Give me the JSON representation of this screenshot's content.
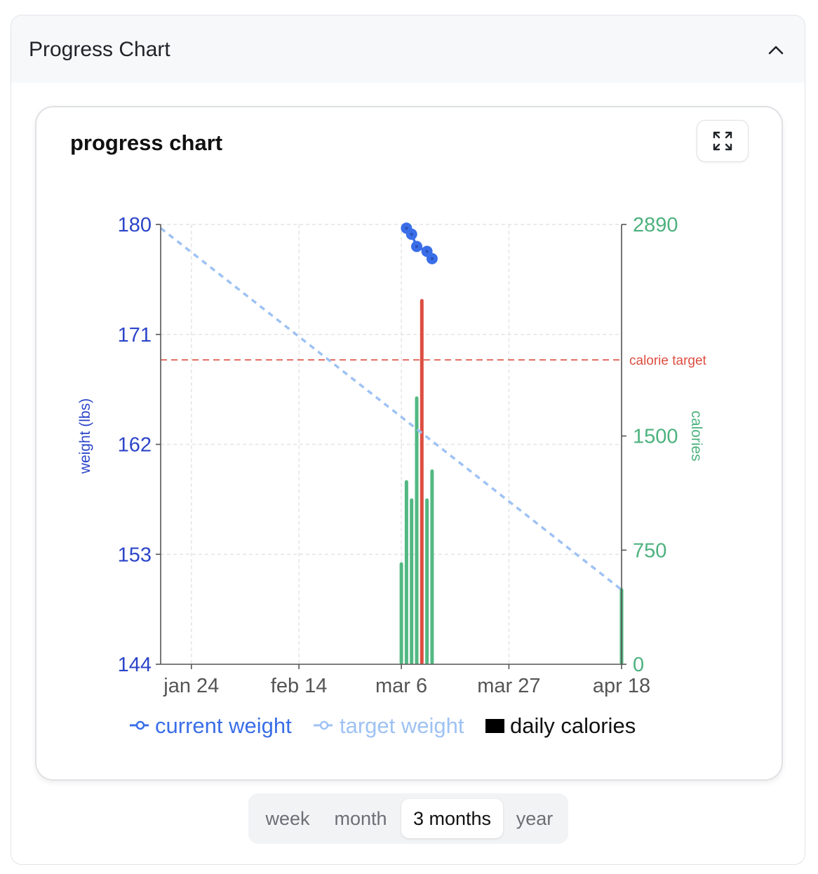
{
  "panel": {
    "title": "Progress Chart",
    "collapse_icon": "chevron-up-icon"
  },
  "card": {
    "title": "progress chart",
    "expand_icon": "expand-icon"
  },
  "range_tabs": [
    "week",
    "month",
    "3 months",
    "year"
  ],
  "range_selected": "3 months",
  "colors": {
    "weight_axis": "#2c45c9",
    "calorie_axis": "#4db27e",
    "current_weight": "#3a6ee8",
    "target_weight": "#9ec2f3",
    "calorie_bar": "#53b883",
    "over_target_bar": "#dc4e41",
    "calorie_target_line": "#dc4e41"
  },
  "chart_data": {
    "type": "line",
    "title": "",
    "ylabel": "weight (lbs)",
    "y2label": "calories",
    "ylim": [
      144,
      180
    ],
    "y2lim": [
      0,
      2890
    ],
    "yticks": [
      180,
      171,
      162,
      153,
      144
    ],
    "y2ticks": [
      2890,
      1500,
      750,
      0
    ],
    "xticks": [
      "jan 24",
      "feb 14",
      "mar 6",
      "mar 27",
      "apr 18"
    ],
    "grid": true,
    "legend_position": "bottom",
    "legend": [
      "current weight",
      "target weight",
      "daily calories"
    ],
    "calorie_target": {
      "value": 2000,
      "label": "calorie target"
    },
    "series": [
      {
        "name": "current weight",
        "kind": "line",
        "axis": "left",
        "x": [
          "2025-03-07",
          "2025-03-08",
          "2025-03-09",
          "2025-03-11",
          "2025-03-12"
        ],
        "values": [
          179.7,
          179.2,
          178.2,
          177.8,
          177.2
        ]
      },
      {
        "name": "target weight",
        "kind": "dashed-line",
        "axis": "left",
        "x": [
          "2025-01-18",
          "2025-04-18"
        ],
        "values": [
          179.7,
          150.1
        ]
      },
      {
        "name": "daily calories",
        "kind": "bar",
        "axis": "right",
        "x": [
          "2025-03-06",
          "2025-03-07",
          "2025-03-08",
          "2025-03-09",
          "2025-03-10",
          "2025-03-11",
          "2025-03-12",
          "2025-04-18"
        ],
        "values": [
          670,
          1210,
          1090,
          1760,
          2400,
          1090,
          1280,
          500
        ],
        "over_target": [
          false,
          false,
          false,
          false,
          true,
          false,
          false,
          false
        ]
      }
    ]
  }
}
